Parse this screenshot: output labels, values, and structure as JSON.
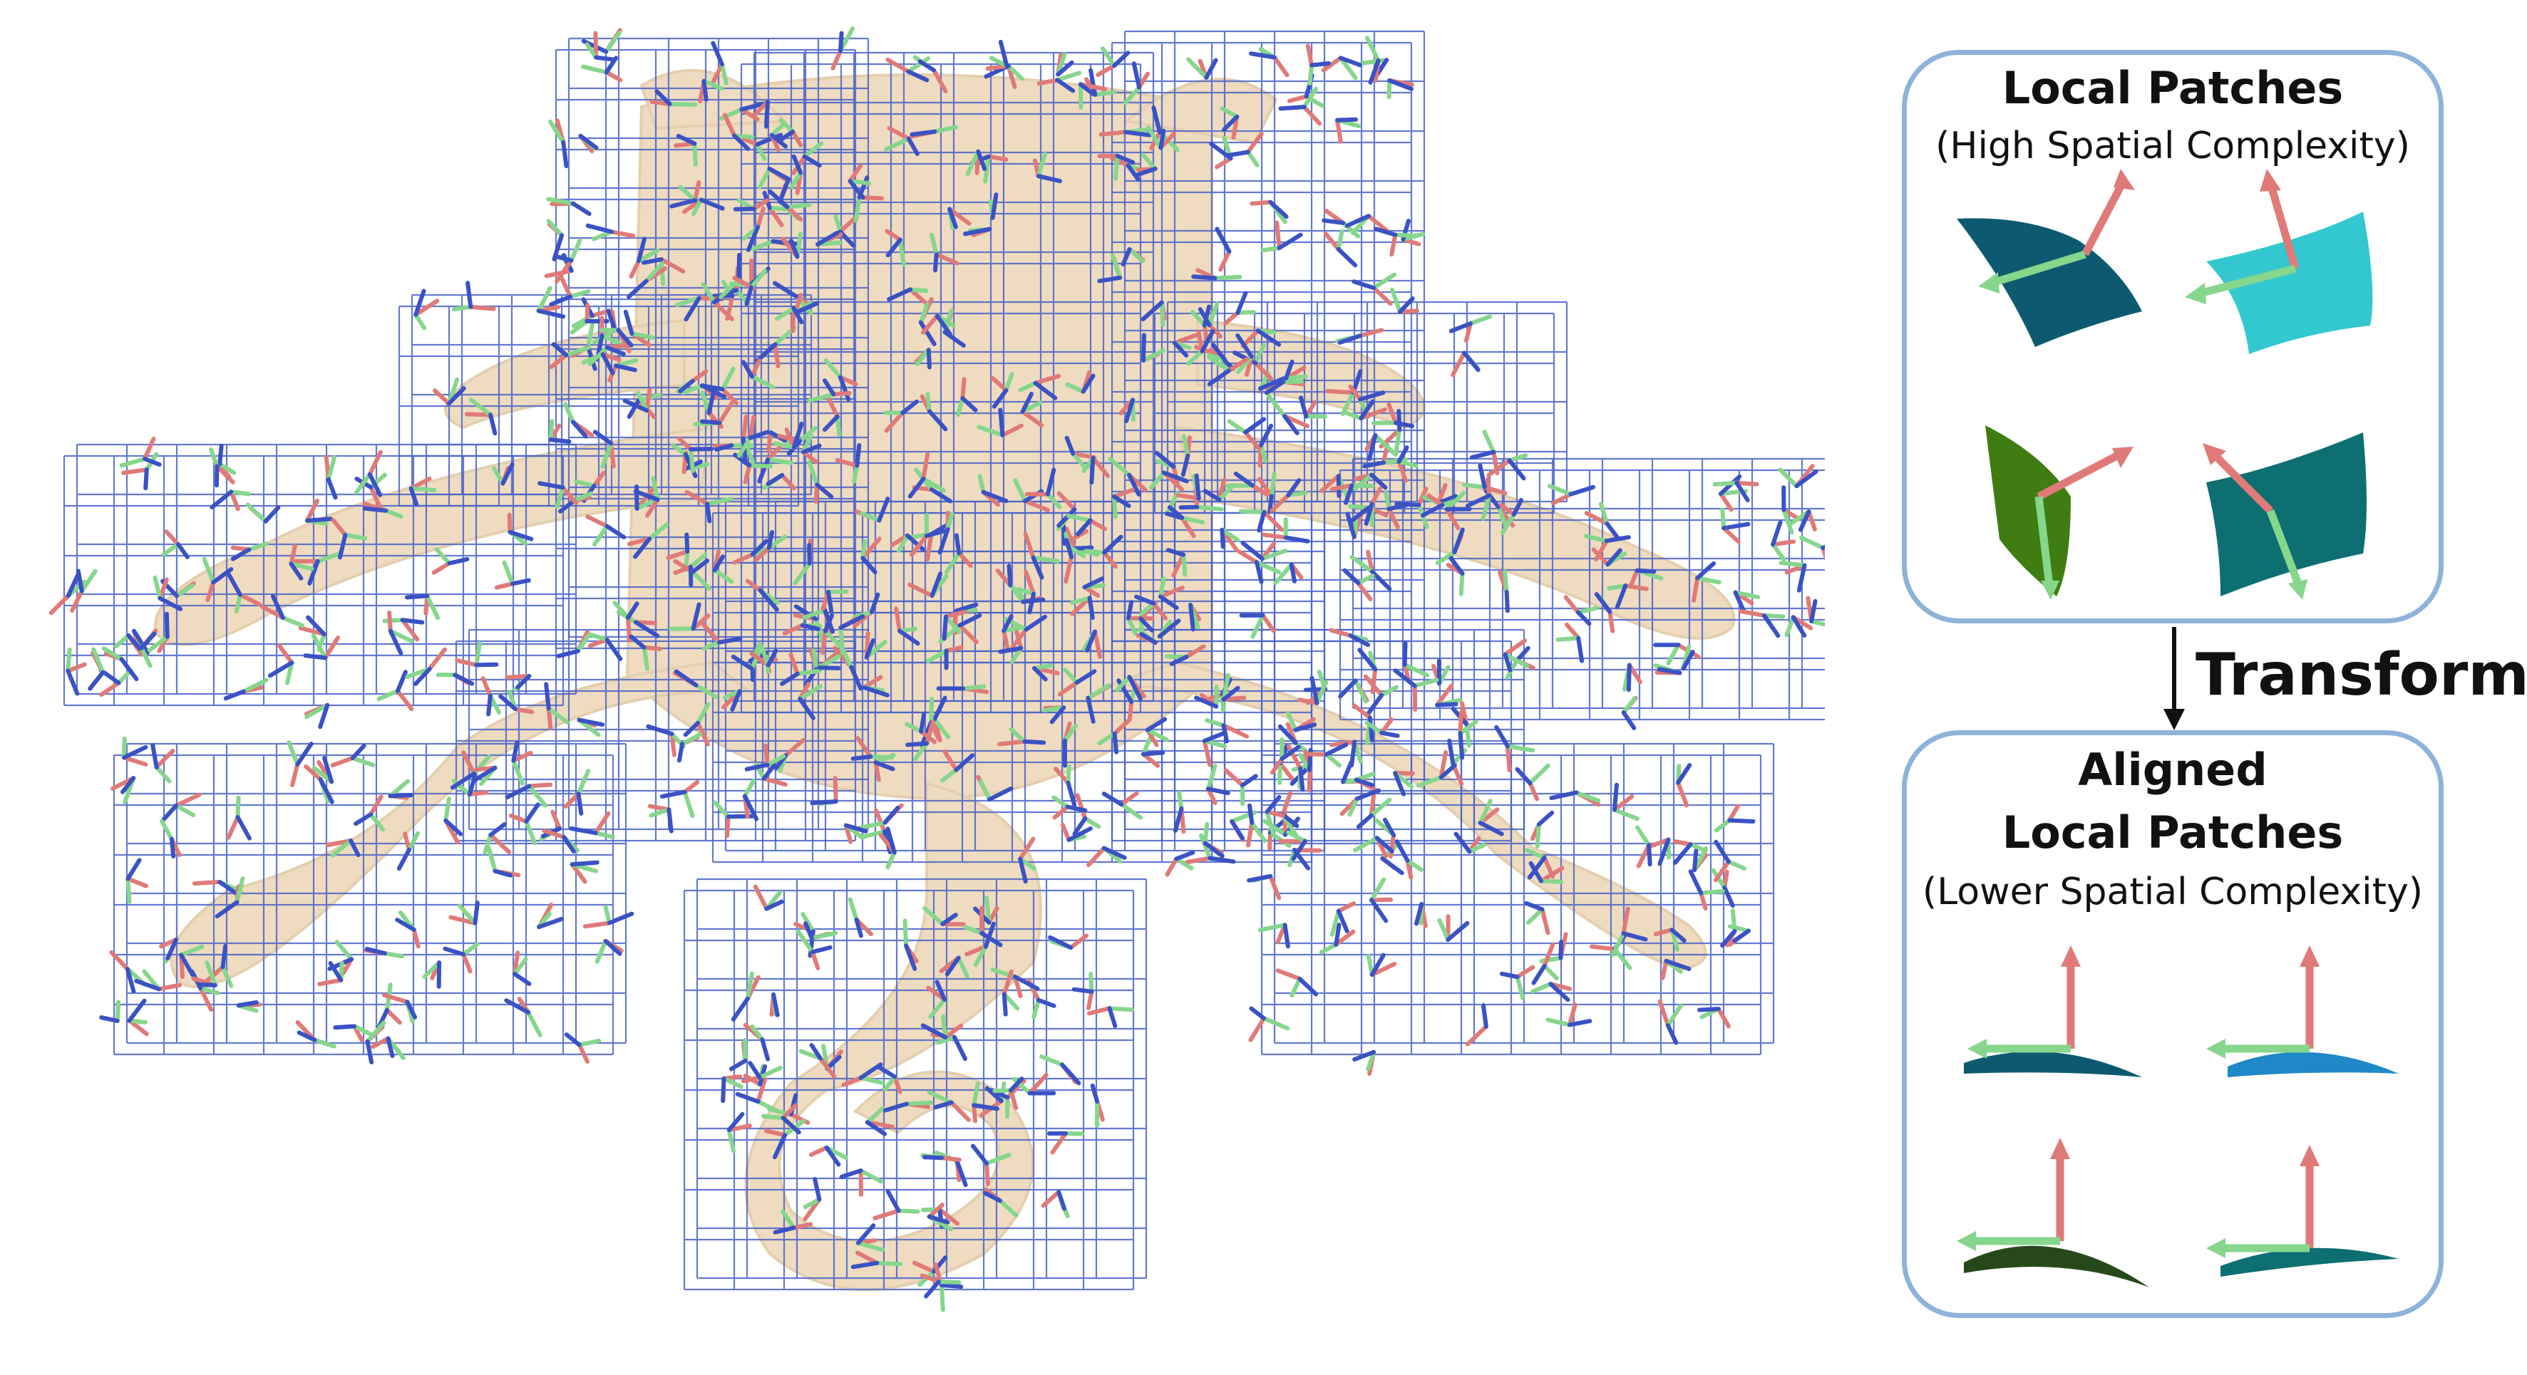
{
  "figure": {
    "description_panel_top": {
      "title": "Local Patches",
      "subtitle": "(High Spatial Complexity)"
    },
    "transform_label": "Transform",
    "description_panel_bottom": {
      "title_line1": "Aligned",
      "title_line2": "Local Patches",
      "subtitle": "(Lower Spatial Complexity)"
    },
    "colors": {
      "grid": "#4a63c9",
      "axis_red": "#e07a78",
      "axis_green": "#86d68c",
      "axis_blue": "#3a52c4",
      "octopus": "#efdcc0",
      "panel_border": "#8eb3db",
      "patch_dark_teal": "#0d5a70",
      "patch_cyan": "#33c8cf",
      "patch_green": "#3f7d12",
      "patch_teal": "#0e6f73",
      "patch_blue": "#1f88c7",
      "patch_olive": "#26491a"
    }
  }
}
